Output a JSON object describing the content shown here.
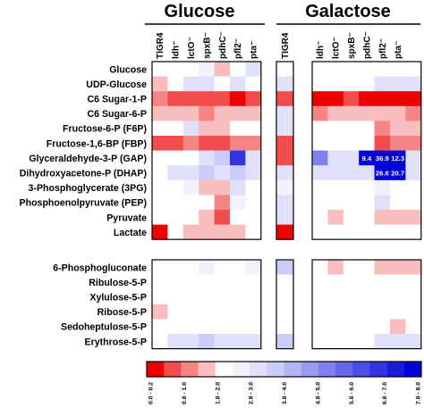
{
  "groups": [
    {
      "name": "Glucose",
      "columns": [
        "TIGR4",
        "ldh⁻",
        "lctO⁻",
        "spxB⁻",
        "pdhC⁻",
        "pfl2⁻",
        "pta⁻"
      ]
    },
    {
      "name": "Galactose",
      "columns": [
        "TIGR4",
        "ldh⁻",
        "lctO⁻",
        "spxB⁻",
        "pdhC⁻",
        "pfl2⁻",
        "pta⁻"
      ]
    }
  ],
  "rows_top": [
    "Glucose",
    "UDP-Glucose",
    "C6 Sugar-1-P",
    "C6 Sugar-6-P",
    "Fructose-6-P (F6P)",
    "Fructose-1,6-BP (FBP)",
    "Glyceraldehyde-3-P (GAP)",
    "Dihydroxyacetone-P (DHAP)",
    "3-Phosphoglycerate (3PG)",
    "Phosphoenolpyruvate (PEP)",
    "Pyruvate",
    "Lactate"
  ],
  "rows_bottom": [
    "6-Phosphogluconate",
    "Ribulose-5-P",
    "Xylulose-5-P",
    "Ribose-5-P",
    "Sedoheptulose-5-P",
    "Erythrose-5-P"
  ],
  "chart_data": {
    "type": "heatmap",
    "title": "",
    "color_scale": {
      "bins": [
        "0.0 - 0.2",
        "0.2 - 0.4",
        "0.4 - 0.6",
        "0.6 - 0.8",
        "0.8 - 1.0",
        "1.0 - 1.2",
        "1.2 - 2.0",
        "2.0 - 3.0",
        "3.0 - 3.8",
        "3.8 - 4.0",
        "4.0 - 5.0",
        "5.0 - 5.8",
        "5.8 - 6.0",
        "6.0 - 7.0",
        "7.0 - 7.8",
        "7.8 - 8.0"
      ],
      "labelled_bins": [
        "0.0 - 0.2",
        "0.8 - 1.0",
        "1.8 - 2.0",
        "2.8 - 3.0",
        "3.8 - 4.0",
        "4.8 - 5.0",
        "5.8 - 6.0",
        "6.8 - 7.0",
        "7.8 - 8.0"
      ],
      "colors": [
        "#ee0000",
        "#f24d4d",
        "#f58585",
        "#f9bdbd",
        "#ffffff",
        "#f2f2fd",
        "#e0e0fb",
        "#ccccf8",
        "#b4b4f5",
        "#9a9af1",
        "#8080ee",
        "#6666ea",
        "#4d4de6",
        "#3333e2",
        "#1a1add",
        "#0000d8"
      ]
    },
    "glucose": {
      "control": [
        1.0,
        1.0,
        1.0,
        1.0,
        1.0,
        1.0,
        1.0,
        1.0,
        1.0,
        1.0,
        1.0,
        1.0
      ],
      "mutants": [
        [
          1.0,
          1.0,
          1.0,
          1.15,
          0.65,
          0.8,
          1.5
        ],
        [
          0.6,
          1.0,
          1.2,
          1.3,
          1.05,
          1.4,
          1.0
        ],
        [
          0.45,
          0.3,
          0.35,
          0.2,
          0.3,
          0.15,
          0.2
        ],
        [
          0.65,
          0.75,
          0.7,
          0.55,
          0.75,
          0.7,
          0.75
        ],
        [
          1.0,
          1.0,
          1.3,
          0.6,
          0.75,
          1.0,
          1.0
        ],
        [
          0.3,
          0.3,
          0.4,
          0.3,
          0.35,
          0.45,
          0.4
        ],
        [
          1.0,
          1.0,
          1.0,
          1.4,
          2.2,
          6.8,
          1.2
        ],
        [
          1.0,
          1.2,
          1.5,
          2.0,
          1.6,
          2.4,
          1.6
        ],
        [
          1.0,
          1.0,
          1.1,
          0.75,
          0.7,
          1.2,
          1.05
        ],
        [
          1.0,
          1.0,
          1.0,
          1.0,
          0.5,
          1.1,
          1.0
        ],
        [
          1.0,
          1.0,
          1.0,
          0.75,
          0.35,
          1.0,
          1.0
        ],
        [
          0.1,
          1.0,
          0.75,
          0.65,
          0.65,
          0.75,
          0.8
        ]
      ]
    },
    "galactose": {
      "control": [
        0.8,
        1.3,
        0.35,
        1.3,
        1.6,
        0.3,
        0.25,
        1.5,
        1.1,
        1.4,
        1.2,
        0.15
      ],
      "mutants": [
        [
          1.0,
          1.0,
          1.0,
          1.0,
          1.0,
          1.0,
          1.0
        ],
        [
          1.0,
          1.0,
          1.0,
          1.0,
          1.3,
          1.35,
          1.2
        ],
        [
          0.15,
          0.1,
          0.2,
          0.15,
          0.1,
          0.1,
          0.15
        ],
        [
          0.55,
          0.6,
          0.75,
          0.6,
          0.65,
          0.7,
          0.55
        ],
        [
          1.0,
          1.0,
          1.0,
          1.0,
          0.5,
          0.7,
          0.7
        ],
        [
          1.0,
          1.0,
          1.0,
          1.0,
          0.35,
          0.55,
          0.5
        ],
        [
          4.5,
          1.2,
          1.4,
          9.4,
          36.9,
          12.3,
          1.5
        ],
        [
          1.5,
          1.3,
          1.3,
          1.6,
          26.6,
          20.7,
          1.4
        ],
        [
          1.0,
          1.0,
          1.0,
          1.0,
          1.1,
          1.0,
          1.0
        ],
        [
          1.0,
          1.0,
          1.0,
          1.0,
          1.3,
          1.0,
          1.0
        ],
        [
          1.0,
          0.7,
          1.0,
          1.0,
          0.6,
          0.7,
          0.75
        ],
        [
          1.0,
          1.0,
          1.0,
          1.0,
          0.85,
          0.85,
          0.85
        ]
      ],
      "annotations": [
        {
          "row": 6,
          "col": 3,
          "text": "9.4"
        },
        {
          "row": 6,
          "col": 4,
          "text": "36.9"
        },
        {
          "row": 6,
          "col": 5,
          "text": "12.3"
        },
        {
          "row": 7,
          "col": 4,
          "text": "26.6"
        },
        {
          "row": 7,
          "col": 5,
          "text": "20.7"
        }
      ]
    },
    "glucose_ppp": {
      "control": [
        1.2,
        1.0,
        1.0,
        1.0,
        1.0,
        1.0
      ],
      "mutants": [
        [
          1.0,
          1.0,
          1.0,
          1.1,
          1.05,
          1.0,
          1.1
        ],
        [
          1.0,
          1.0,
          1.0,
          1.0,
          1.0,
          1.0,
          1.0
        ],
        [
          1.0,
          1.0,
          1.0,
          1.0,
          1.0,
          1.0,
          1.0
        ],
        [
          0.75,
          0.8,
          0.8,
          1.0,
          0.85,
          1.0,
          1.0
        ],
        [
          1.0,
          1.0,
          0.85,
          1.0,
          0.85,
          0.9,
          1.0
        ],
        [
          1.0,
          1.3,
          1.35,
          2.2,
          1.2,
          1.2,
          1.3
        ]
      ]
    },
    "galactose_ppp": {
      "control": [
        2.4,
        1.0,
        1.0,
        1.0,
        1.0,
        2.8
      ],
      "mutants": [
        [
          1.0,
          0.75,
          1.0,
          1.0,
          0.6,
          0.65,
          0.75
        ],
        [
          1.0,
          1.0,
          1.0,
          1.0,
          0.85,
          0.85,
          1.0
        ],
        [
          1.0,
          1.0,
          1.0,
          1.0,
          1.0,
          1.0,
          1.0
        ],
        [
          1.0,
          1.0,
          1.0,
          1.0,
          0.85,
          0.85,
          1.0
        ],
        [
          1.0,
          1.0,
          1.0,
          1.0,
          1.0,
          0.75,
          0.8
        ],
        [
          1.0,
          1.0,
          1.0,
          1.0,
          1.3,
          1.2,
          1.2
        ]
      ]
    }
  }
}
